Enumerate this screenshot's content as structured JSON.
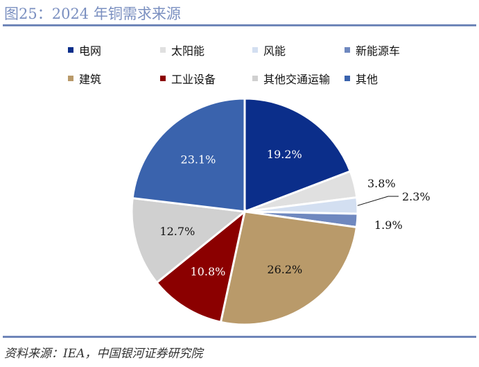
{
  "title": "图25：2024 年铜需求来源",
  "source": "资料来源：IEA，中国银河证券研究院",
  "chart_data": {
    "type": "pie",
    "title": "2024 年铜需求来源",
    "start": "12 o'clock, clockwise",
    "legend_position": "top",
    "slices": [
      {
        "name": "电网",
        "value": 19.2,
        "label": "19.2%",
        "color": "#0b2e8a",
        "inside": true
      },
      {
        "name": "太阳能",
        "value": 3.8,
        "label": "3.8%",
        "color": "#e0e0e0",
        "inside": false
      },
      {
        "name": "风能",
        "value": 2.3,
        "label": "2.3%",
        "color": "#d3dff1",
        "inside": false
      },
      {
        "name": "新能源车",
        "value": 1.9,
        "label": "1.9%",
        "color": "#6f88bf",
        "inside": false
      },
      {
        "name": "建筑",
        "value": 26.2,
        "label": "26.2%",
        "color": "#b99a6a",
        "inside": true
      },
      {
        "name": "工业设备",
        "value": 10.8,
        "label": "10.8%",
        "color": "#8b0000",
        "inside": true
      },
      {
        "name": "其他交通运输",
        "value": 12.7,
        "label": "12.7%",
        "color": "#d0d0d0",
        "inside": true
      },
      {
        "name": "其他",
        "value": 23.1,
        "label": "23.1%",
        "color": "#3a63ad",
        "inside": true
      }
    ]
  }
}
